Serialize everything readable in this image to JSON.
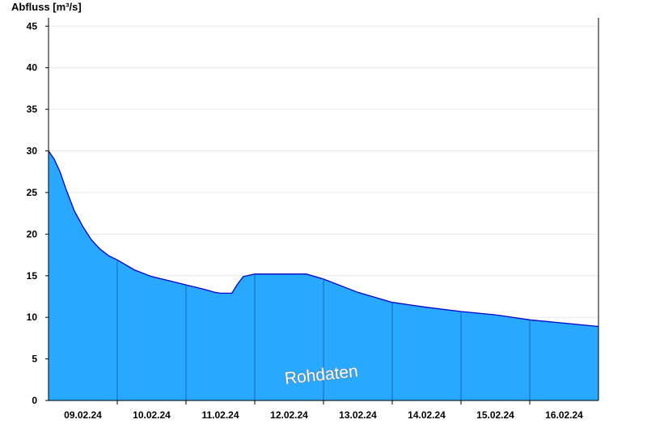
{
  "chart_data": {
    "type": "area",
    "ylabel": "Abfluss [m³/s]",
    "ylim": [
      0,
      46
    ],
    "yticks": [
      0,
      5,
      10,
      15,
      20,
      25,
      30,
      35,
      40,
      45
    ],
    "xlim": [
      "2024-02-08T12:00",
      "2024-02-16T12:00"
    ],
    "xticks": [
      {
        "label": "09.02.24",
        "at": "2024-02-09T00:00"
      },
      {
        "label": "10.02.24",
        "at": "2024-02-10T00:00"
      },
      {
        "label": "11.02.24",
        "at": "2024-02-11T00:00"
      },
      {
        "label": "12.02.24",
        "at": "2024-02-12T00:00"
      },
      {
        "label": "13.02.24",
        "at": "2024-02-13T00:00"
      },
      {
        "label": "14.02.24",
        "at": "2024-02-14T00:00"
      },
      {
        "label": "15.02.24",
        "at": "2024-02-15T00:00"
      },
      {
        "label": "16.02.24",
        "at": "2024-02-16T00:00"
      }
    ],
    "day_lines": [
      "2024-02-09T12:00",
      "2024-02-10T12:00",
      "2024-02-11T12:00",
      "2024-02-12T12:00",
      "2024-02-13T12:00",
      "2024-02-14T12:00",
      "2024-02-15T12:00"
    ],
    "series": [
      {
        "color": "#29a8ff",
        "line_color": "#0000cc",
        "x": [
          "2024-02-08T12:00",
          "2024-02-08T14:00",
          "2024-02-08T16:00",
          "2024-02-08T18:00",
          "2024-02-08T21:00",
          "2024-02-09T00:00",
          "2024-02-09T03:00",
          "2024-02-09T06:00",
          "2024-02-09T09:00",
          "2024-02-09T12:00",
          "2024-02-09T18:00",
          "2024-02-10T00:00",
          "2024-02-10T06:00",
          "2024-02-10T12:00",
          "2024-02-10T18:00",
          "2024-02-10T22:00",
          "2024-02-11T00:00",
          "2024-02-11T04:00",
          "2024-02-11T06:00",
          "2024-02-11T08:00",
          "2024-02-11T12:00",
          "2024-02-12T00:00",
          "2024-02-12T06:00",
          "2024-02-12T12:00",
          "2024-02-13T00:00",
          "2024-02-13T12:00",
          "2024-02-14T00:00",
          "2024-02-14T12:00",
          "2024-02-15T00:00",
          "2024-02-15T12:00",
          "2024-02-16T00:00",
          "2024-02-16T12:00"
        ],
        "y": [
          30.0,
          29.0,
          27.5,
          25.5,
          22.8,
          20.9,
          19.3,
          18.2,
          17.4,
          16.9,
          15.7,
          14.9,
          14.4,
          13.9,
          13.4,
          13.0,
          12.9,
          12.9,
          14.0,
          14.9,
          15.2,
          15.2,
          15.2,
          14.6,
          13.0,
          11.8,
          11.2,
          10.7,
          10.3,
          9.7,
          9.3,
          8.9
        ]
      }
    ],
    "annotation": "Rohdaten",
    "grid": true
  }
}
